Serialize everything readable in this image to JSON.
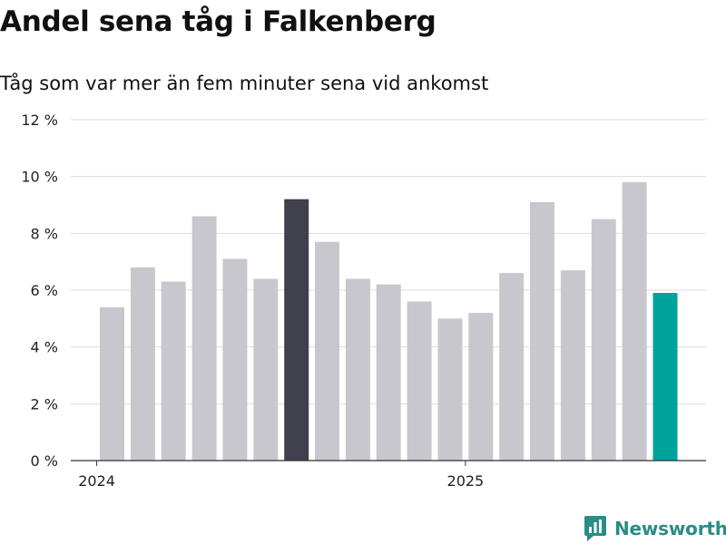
{
  "title": "Andel sena tåg i Falkenberg",
  "subtitle": "Tåg som var mer än fem minuter sena vid ankomst",
  "brand": {
    "name": "Newsworthy",
    "logo_icon": "newsworthy-logo-icon"
  },
  "colors": {
    "default_bar": "#c8c7ce",
    "highlight_bar": "#41404d",
    "latest_bar": "#00a39b",
    "grid": "#dddddd",
    "axis": "#333333"
  },
  "chart_data": {
    "type": "bar",
    "title": "Andel sena tåg i Falkenberg",
    "subtitle": "Tåg som var mer än fem minuter sena vid ankomst",
    "categories": [
      "2024-01",
      "2024-02",
      "2024-03",
      "2024-04",
      "2024-05",
      "2024-06",
      "2024-07",
      "2024-08",
      "2024-09",
      "2024-10",
      "2024-11",
      "2024-12",
      "2025-01",
      "2025-02",
      "2025-03",
      "2025-04",
      "2025-05",
      "2025-06",
      "2025-07"
    ],
    "values": [
      5.4,
      6.8,
      6.3,
      8.6,
      7.1,
      6.4,
      9.2,
      7.7,
      6.4,
      6.2,
      5.6,
      5.0,
      5.2,
      6.6,
      9.1,
      6.7,
      8.5,
      9.8,
      5.9
    ],
    "highlight": {
      "index": 6,
      "color": "#41404d"
    },
    "latest": {
      "index": 18,
      "color": "#00a39b"
    },
    "ylim": [
      0,
      12
    ],
    "yticks": [
      0,
      2,
      4,
      6,
      8,
      10,
      12
    ],
    "ytick_labels": [
      "0 %",
      "2 %",
      "4 %",
      "6 %",
      "8 %",
      "10 %",
      "12 %"
    ],
    "xticks": [
      {
        "label": "2024",
        "position": "2023-12"
      },
      {
        "label": "2025",
        "position": "2024-12"
      }
    ],
    "xlabel": "",
    "ylabel": "",
    "grid": true,
    "legend": "none"
  }
}
